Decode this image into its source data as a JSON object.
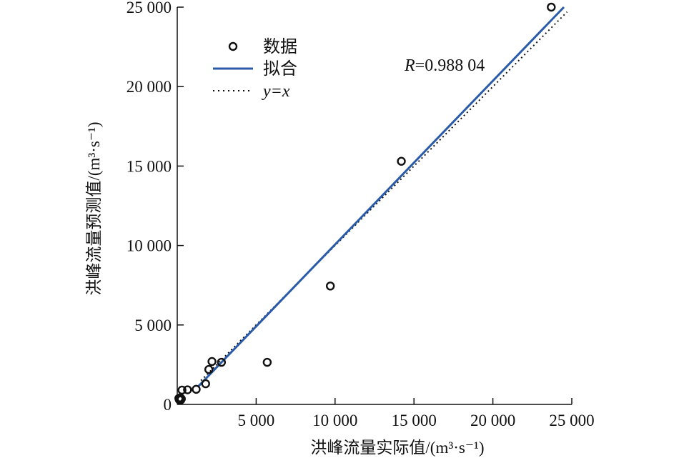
{
  "chart_data": {
    "type": "scatter",
    "xlabel": "洪峰流量实际值/(m³·s⁻¹)",
    "ylabel": "洪峰流量预测值/(m³·s⁻¹)",
    "xlim": [
      0,
      25000
    ],
    "ylim": [
      0,
      25000
    ],
    "x_ticks": [
      {
        "value": 5000,
        "label": "5 000"
      },
      {
        "value": 10000,
        "label": "10 000"
      },
      {
        "value": 15000,
        "label": "15 000"
      },
      {
        "value": 20000,
        "label": "20 000"
      },
      {
        "value": 25000,
        "label": "25 000"
      }
    ],
    "y_ticks": [
      {
        "value": 0,
        "label": "0"
      },
      {
        "value": 5000,
        "label": "5 000"
      },
      {
        "value": 10000,
        "label": "10 000"
      },
      {
        "value": 15000,
        "label": "15 000"
      },
      {
        "value": 20000,
        "label": "20 000"
      },
      {
        "value": 25000,
        "label": "25 000"
      }
    ],
    "grid": false,
    "legend_position": "top-left",
    "annotation": {
      "label": "R",
      "value": "=0.988 04"
    },
    "series": [
      {
        "name": "数据",
        "kind": "scatter",
        "color": "#111111",
        "points": [
          {
            "x": 100,
            "y": 380
          },
          {
            "x": 130,
            "y": 300
          },
          {
            "x": 180,
            "y": 420
          },
          {
            "x": 220,
            "y": 280
          },
          {
            "x": 260,
            "y": 350
          },
          {
            "x": 300,
            "y": 900
          },
          {
            "x": 650,
            "y": 920
          },
          {
            "x": 1200,
            "y": 950
          },
          {
            "x": 1800,
            "y": 1300
          },
          {
            "x": 2000,
            "y": 2200
          },
          {
            "x": 2200,
            "y": 2700
          },
          {
            "x": 2800,
            "y": 2650
          },
          {
            "x": 5700,
            "y": 2650
          },
          {
            "x": 9700,
            "y": 7450
          },
          {
            "x": 14200,
            "y": 15300
          },
          {
            "x": 23700,
            "y": 25000
          }
        ]
      },
      {
        "name": "拟合",
        "kind": "line",
        "color": "#2a5ba8",
        "x": [
          1300,
          24500
        ],
        "y": [
          1100,
          25000
        ]
      },
      {
        "name": "y=x",
        "kind": "line",
        "style": "dotted",
        "color": "#111111",
        "x": [
          1500,
          24700
        ],
        "y": [
          1500,
          24700
        ]
      }
    ]
  }
}
